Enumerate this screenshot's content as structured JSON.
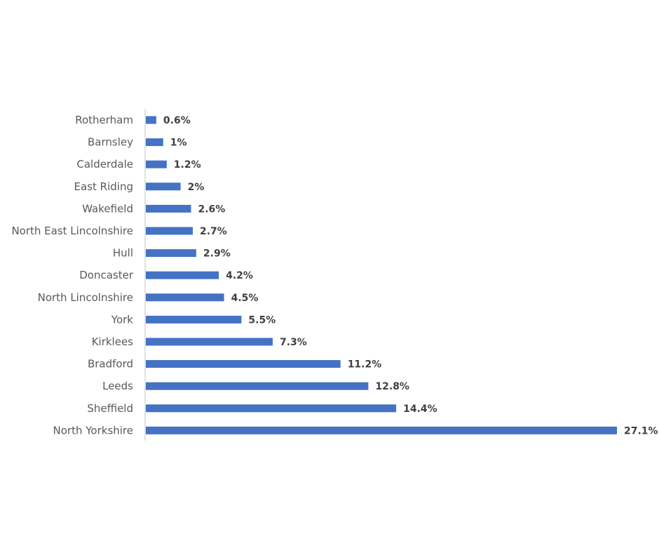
{
  "chart_data": {
    "type": "bar",
    "orientation": "horizontal",
    "categories": [
      "Rotherham",
      "Barnsley",
      "Calderdale",
      "East Riding",
      "Wakefield",
      "North East Lincolnshire",
      "Hull",
      "Doncaster",
      "North Lincolnshire",
      "York",
      "Kirklees",
      "Bradford",
      "Leeds",
      "Sheffield",
      "North Yorkshire"
    ],
    "values": [
      0.6,
      1,
      1.2,
      2,
      2.6,
      2.7,
      2.9,
      4.2,
      4.5,
      5.5,
      7.3,
      11.2,
      12.8,
      14.4,
      27.1
    ],
    "data_labels": [
      "0.6%",
      "1%",
      "1.2%",
      "2%",
      "2.6%",
      "2.7%",
      "2.9%",
      "4.2%",
      "4.5%",
      "5.5%",
      "7.3%",
      "11.2%",
      "12.8%",
      "14.4%",
      "27.1%"
    ],
    "xlim": [
      0,
      27.1
    ],
    "grid": false,
    "legend": "none",
    "bar_color": "#4472c4"
  }
}
